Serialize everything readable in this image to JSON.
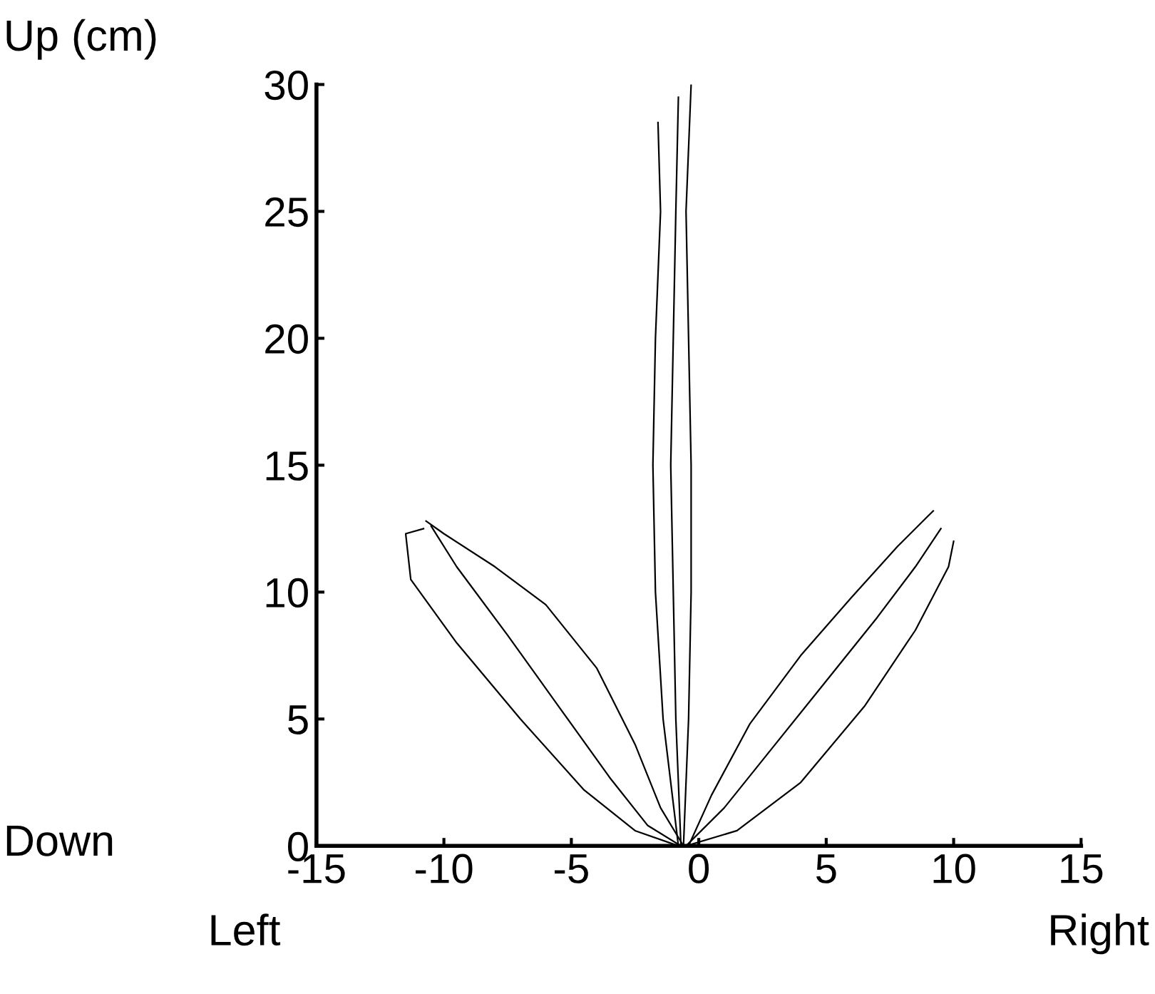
{
  "chart_data": {
    "type": "line",
    "ylabel": "Up (cm)",
    "annotations": [
      "Down",
      "Left",
      "Right"
    ],
    "xlim": [
      -15,
      15
    ],
    "xticks": [
      -15,
      -10,
      -5,
      0,
      5,
      10,
      15
    ],
    "ylim": [
      0,
      30
    ],
    "yticks": [
      0,
      5,
      10,
      15,
      20,
      25,
      30
    ],
    "grid": false,
    "legend": false,
    "marker": "none",
    "line_style": "solid",
    "series": [
      {
        "color": "#000000",
        "x": [
          -0.7,
          -0.9,
          -1.0,
          -1.1,
          -1.0,
          -0.9,
          -0.8
        ],
        "values": [
          0,
          5,
          10,
          15,
          20,
          25,
          29.5
        ]
      },
      {
        "color": "#000000",
        "x": [
          -0.6,
          -0.4,
          -0.3,
          -0.3,
          -0.4,
          -0.5,
          -0.3
        ],
        "values": [
          0,
          5,
          10,
          15,
          20,
          25,
          30
        ]
      },
      {
        "color": "#000000",
        "x": [
          -0.8,
          -1.4,
          -1.7,
          -1.8,
          -1.7,
          -1.5,
          -1.6
        ],
        "values": [
          0,
          5,
          10,
          15,
          20,
          25,
          28.5
        ]
      },
      {
        "color": "#000000",
        "x": [
          -0.7,
          -2,
          -3.5,
          -5.5,
          -7.5,
          -9.5,
          -10.5
        ],
        "values": [
          0,
          0.8,
          2.7,
          5.5,
          8.3,
          11,
          12.6
        ]
      },
      {
        "color": "#000000",
        "x": [
          -0.8,
          -2.5,
          -4.5,
          -7,
          -9.5,
          -11.3,
          -11.5,
          -10.8
        ],
        "values": [
          0,
          0.6,
          2.2,
          5,
          8,
          10.5,
          12.3,
          12.5
        ]
      },
      {
        "color": "#000000",
        "x": [
          -0.6,
          -1.5,
          -2.5,
          -4,
          -6,
          -8,
          -10,
          -10.7
        ],
        "values": [
          0,
          1.5,
          4,
          7,
          9.5,
          11,
          12.3,
          12.8
        ]
      },
      {
        "color": "#000000",
        "x": [
          -0.5,
          1,
          3,
          5,
          7,
          8.5,
          9.5
        ],
        "values": [
          0,
          1.5,
          4,
          6.5,
          9,
          11,
          12.5
        ]
      },
      {
        "color": "#000000",
        "x": [
          -0.5,
          1.5,
          4,
          6.5,
          8.5,
          9.8,
          10
        ],
        "values": [
          0,
          0.6,
          2.5,
          5.5,
          8.5,
          11,
          12
        ]
      },
      {
        "color": "#000000",
        "x": [
          -0.4,
          0.5,
          2,
          4,
          6,
          7.8,
          9,
          9.2
        ],
        "values": [
          0,
          2,
          4.8,
          7.5,
          9.8,
          11.8,
          13,
          13.2
        ]
      }
    ]
  }
}
